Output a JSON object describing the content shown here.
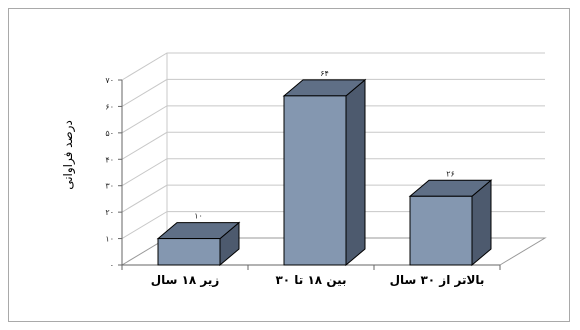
{
  "chart_data": {
    "type": "bar",
    "style": "3d-column",
    "categories": [
      "زیر ۱۸ سال",
      "بین ۱۸ تا ۳۰",
      "بالاتر از ۳۰ سال"
    ],
    "values": [
      10,
      64,
      26
    ],
    "value_labels": [
      "۱۰",
      "۶۴",
      "۲۶"
    ],
    "ylabel": "درصد فراوانی",
    "ylim": [
      0,
      70
    ],
    "yticks": [
      0,
      10,
      20,
      30,
      40,
      50,
      60,
      70
    ],
    "ytick_labels": [
      "۰",
      "۱۰",
      "۲۰",
      "۳۰",
      "۴۰",
      "۵۰",
      "۶۰",
      "۷۰"
    ],
    "grid": true,
    "legend": "none",
    "colors": {
      "bar_front": "#8497b0",
      "bar_side": "#4d5a6e",
      "bar_top": "#5f6f86",
      "bar_outline": "#000000",
      "gridline": "#c8c8c8",
      "axis": "#666666"
    }
  }
}
